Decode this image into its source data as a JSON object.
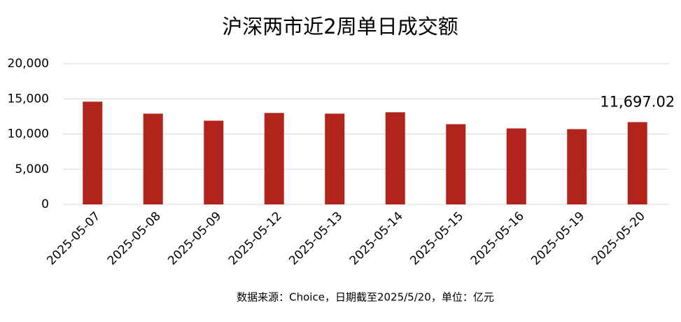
{
  "chart_data": {
    "type": "bar",
    "title": "沪深两市近2周单日成交额",
    "categories": [
      "2025-05-07",
      "2025-05-08",
      "2025-05-09",
      "2025-05-12",
      "2025-05-13",
      "2025-05-14",
      "2025-05-15",
      "2025-05-16",
      "2025-05-19",
      "2025-05-20"
    ],
    "values": [
      14600,
      12900,
      11900,
      13000,
      12900,
      13100,
      11400,
      10800,
      10700,
      11697.02
    ],
    "value_labels": [
      null,
      null,
      null,
      null,
      null,
      null,
      null,
      null,
      null,
      "11,697.02"
    ],
    "color": "#b0241b",
    "ylim": [
      0,
      20000
    ],
    "yticks": [
      0,
      {
        "value": 5000,
        "label": "5,000"
      },
      {
        "value": 10000,
        "label": "10,000"
      },
      {
        "value": 15000,
        "label": "15,000"
      },
      {
        "value": 20000,
        "label": "20,000"
      }
    ],
    "grid": true,
    "note": "数据来源：Choice，日期截至2025/5/20，单位：亿元"
  }
}
